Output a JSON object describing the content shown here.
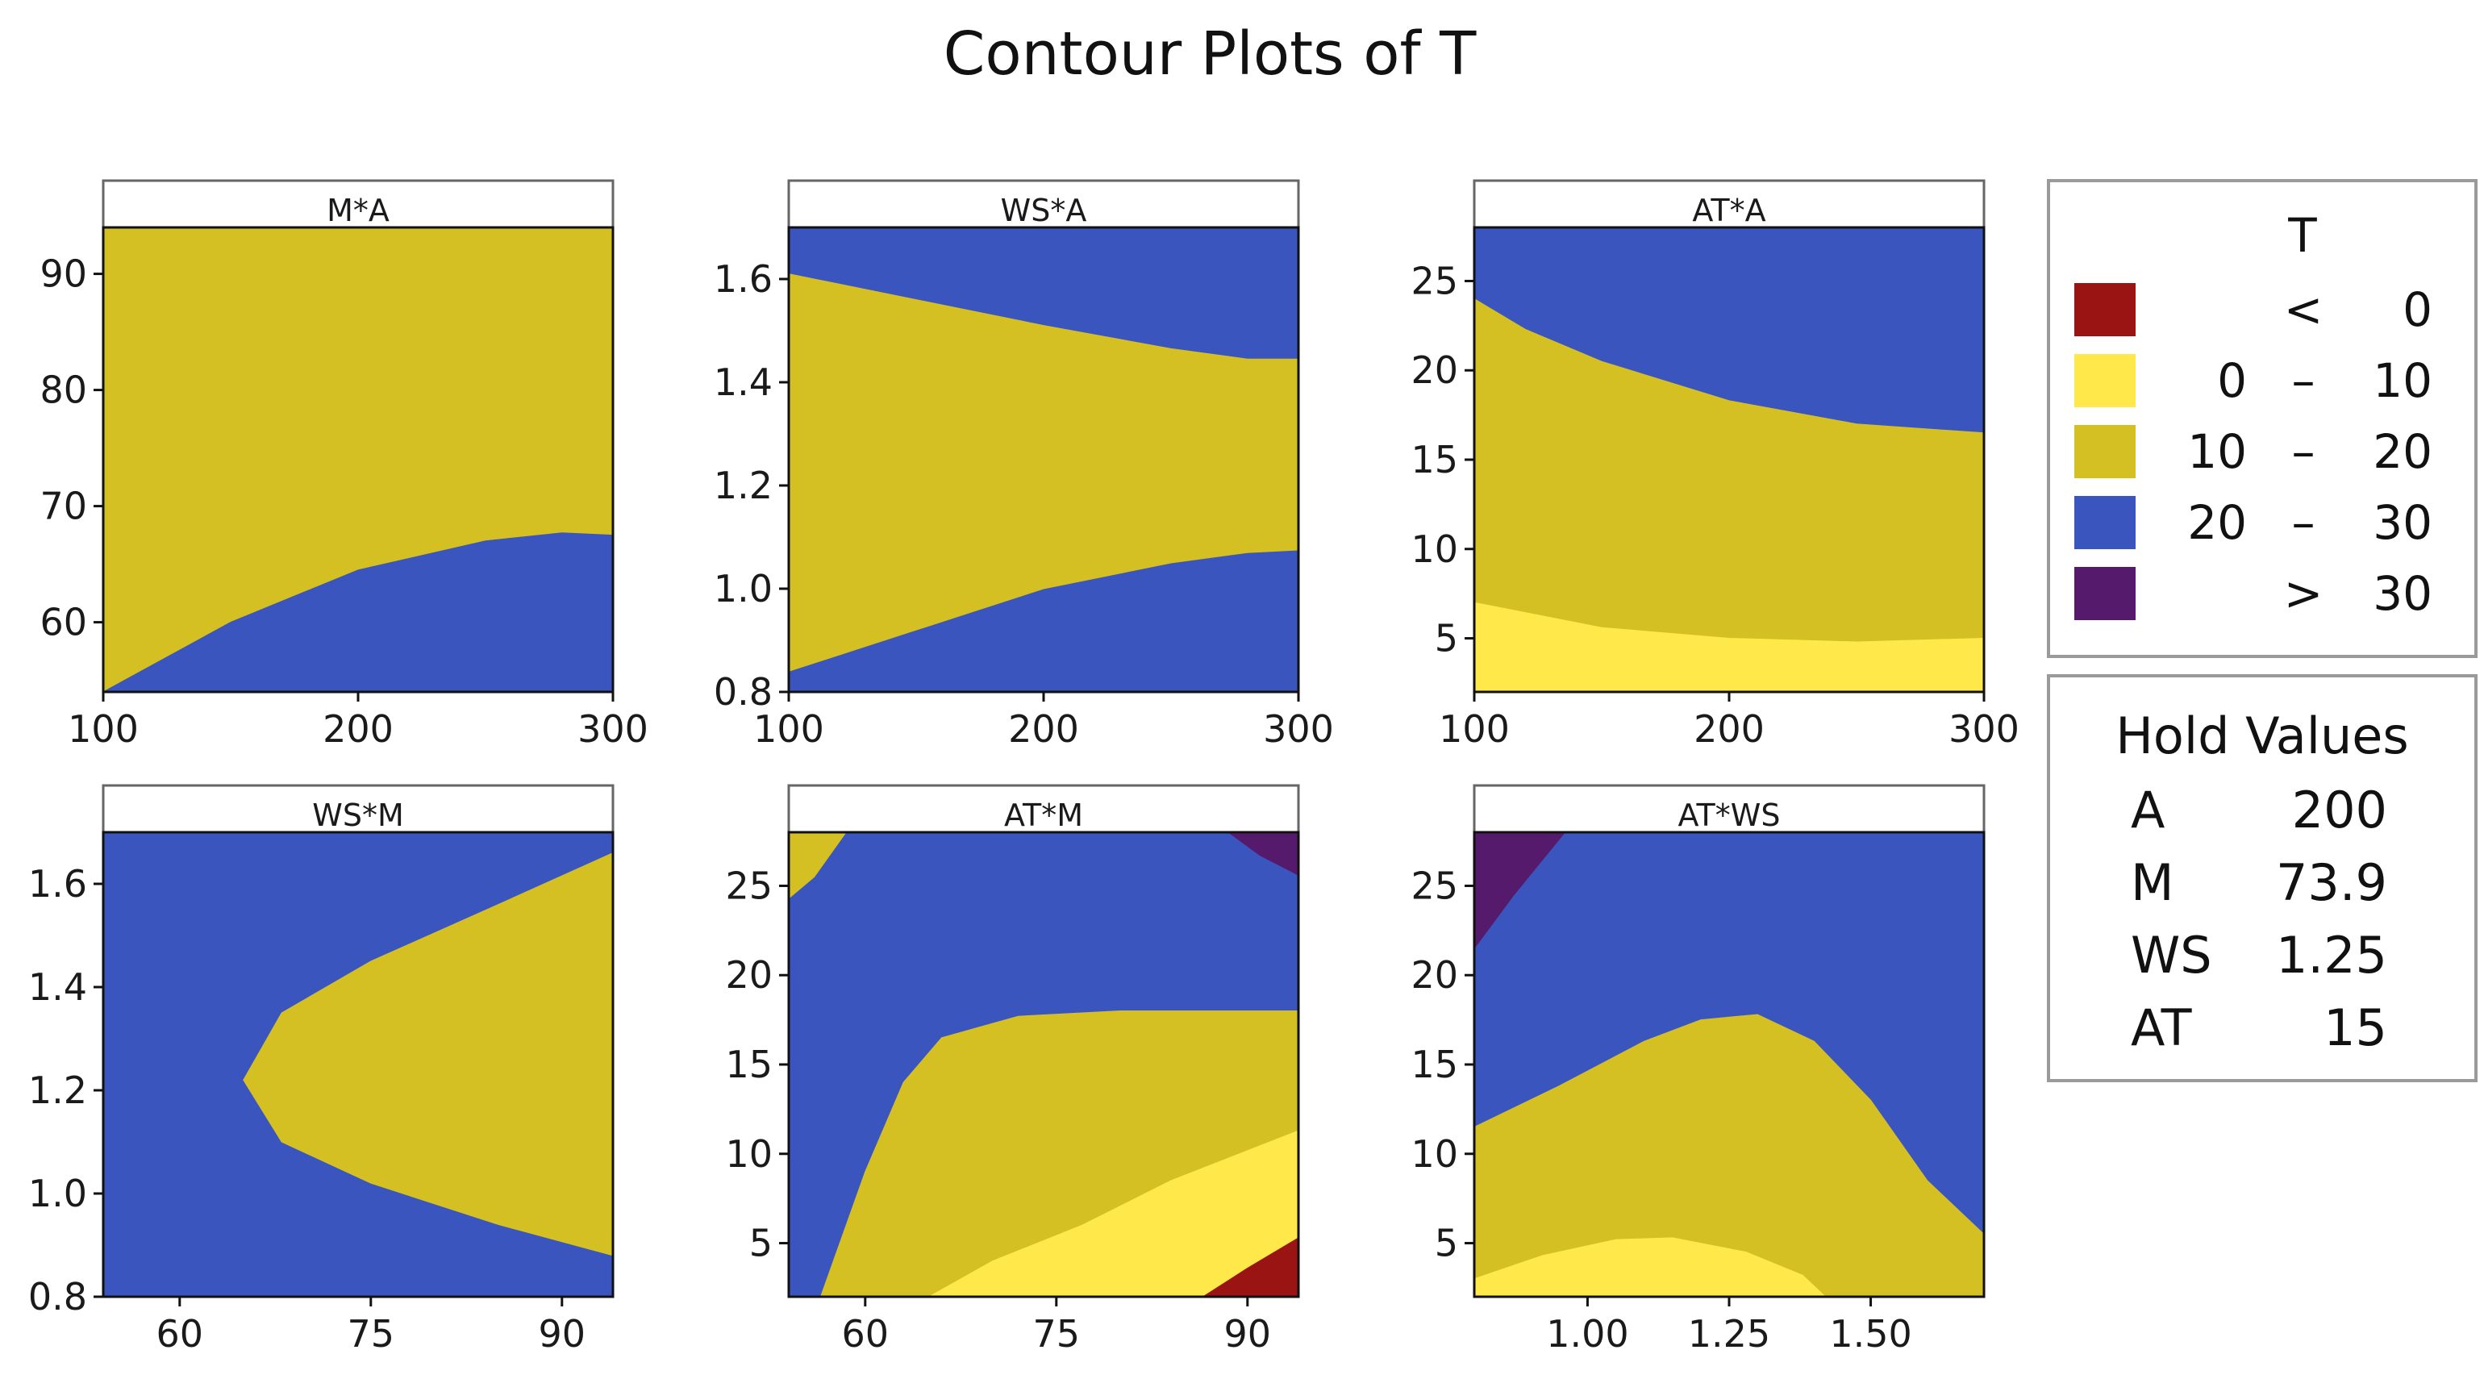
{
  "chart_data": {
    "type": "contour",
    "title": "Contour Plots of T",
    "palette": {
      "lt0": "#9B1414",
      "b0_10": "#FFE84A",
      "b10_20": "#D4C023",
      "b20_30": "#3B55BE",
      "gt30": "#561A6C",
      "frame": "#111111",
      "strip_border": "#666666",
      "legend_border": "#9a9a9a"
    },
    "legend": {
      "title": "T",
      "placement": "right",
      "rows": [
        {
          "key": "lt0",
          "low": "",
          "sep": "<",
          "high": "0"
        },
        {
          "key": "b0_10",
          "low": "0",
          "sep": "–",
          "high": "10"
        },
        {
          "key": "b10_20",
          "low": "10",
          "sep": "–",
          "high": "20"
        },
        {
          "key": "b20_30",
          "low": "20",
          "sep": "–",
          "high": "30"
        },
        {
          "key": "gt30",
          "low": "",
          "sep": ">",
          "high": "30"
        }
      ]
    },
    "hold_values": {
      "title": "Hold Values",
      "rows": [
        {
          "name": "A",
          "value": "200"
        },
        {
          "name": "M",
          "value": "73.9"
        },
        {
          "name": "WS",
          "value": "1.25"
        },
        {
          "name": "AT",
          "value": "15"
        }
      ]
    },
    "panels": [
      {
        "id": "m-a",
        "title": "M*A",
        "xlim": [
          100,
          300
        ],
        "ylim": [
          54,
          94
        ],
        "xticks": [
          100,
          200,
          300
        ],
        "xtick_labels": [
          "100",
          "200",
          "300"
        ],
        "yticks": [
          60,
          70,
          80,
          90
        ],
        "ytick_labels": [
          "60",
          "70",
          "80",
          "90"
        ],
        "regions": [
          {
            "band": "b10_20",
            "points": [
              [
                100,
                94
              ],
              [
                300,
                94
              ],
              [
                300,
                67.5
              ],
              [
                280,
                67.7
              ],
              [
                250,
                67
              ],
              [
                200,
                64.5
              ],
              [
                150,
                60
              ],
              [
                100,
                54
              ]
            ]
          },
          {
            "band": "b20_30",
            "points": [
              [
                100,
                54
              ],
              [
                150,
                60
              ],
              [
                200,
                64.5
              ],
              [
                250,
                67
              ],
              [
                280,
                67.7
              ],
              [
                300,
                67.5
              ],
              [
                300,
                54
              ]
            ]
          }
        ]
      },
      {
        "id": "ws-a",
        "title": "WS*A",
        "xlim": [
          100,
          300
        ],
        "ylim": [
          0.8,
          1.7
        ],
        "xticks": [
          100,
          200,
          300
        ],
        "xtick_labels": [
          "100",
          "200",
          "300"
        ],
        "yticks": [
          0.8,
          1.0,
          1.2,
          1.4,
          1.6
        ],
        "ytick_labels": [
          "0.8",
          "1.0",
          "1.2",
          "1.4",
          "1.6"
        ],
        "regions": [
          {
            "band": "b20_30",
            "points": [
              [
                100,
                0.8
              ],
              [
                300,
                0.8
              ],
              [
                300,
                1.7
              ],
              [
                100,
                1.7
              ]
            ]
          },
          {
            "band": "b10_20",
            "points": [
              [
                100,
                1.61
              ],
              [
                150,
                1.56
              ],
              [
                200,
                1.51
              ],
              [
                250,
                1.465
              ],
              [
                280,
                1.445
              ],
              [
                300,
                1.445
              ],
              [
                300,
                1.075
              ],
              [
                280,
                1.07
              ],
              [
                250,
                1.05
              ],
              [
                200,
                1.0
              ],
              [
                150,
                0.92
              ],
              [
                100,
                0.84
              ]
            ]
          }
        ]
      },
      {
        "id": "at-a",
        "title": "AT*A",
        "xlim": [
          100,
          300
        ],
        "ylim": [
          2,
          28
        ],
        "xticks": [
          100,
          200,
          300
        ],
        "xtick_labels": [
          "100",
          "200",
          "300"
        ],
        "yticks": [
          5,
          10,
          15,
          20,
          25
        ],
        "ytick_labels": [
          "5",
          "10",
          "15",
          "20",
          "25"
        ],
        "regions": [
          {
            "band": "b20_30",
            "points": [
              [
                100,
                2
              ],
              [
                300,
                2
              ],
              [
                300,
                28
              ],
              [
                100,
                28
              ]
            ]
          },
          {
            "band": "b10_20",
            "points": [
              [
                100,
                24
              ],
              [
                120,
                22.3
              ],
              [
                150,
                20.5
              ],
              [
                200,
                18.3
              ],
              [
                250,
                17
              ],
              [
                300,
                16.5
              ],
              [
                300,
                2
              ],
              [
                100,
                2
              ]
            ]
          },
          {
            "band": "b0_10",
            "points": [
              [
                100,
                7
              ],
              [
                150,
                5.6
              ],
              [
                200,
                5
              ],
              [
                250,
                4.8
              ],
              [
                300,
                5
              ],
              [
                300,
                2
              ],
              [
                100,
                2
              ]
            ]
          }
        ]
      },
      {
        "id": "ws-m",
        "title": "WS*M",
        "xlim": [
          54,
          94
        ],
        "ylim": [
          0.8,
          1.7
        ],
        "xticks": [
          60,
          75,
          90
        ],
        "xtick_labels": [
          "60",
          "75",
          "90"
        ],
        "yticks": [
          0.8,
          1.0,
          1.2,
          1.4,
          1.6
        ],
        "ytick_labels": [
          "0.8",
          "1.0",
          "1.2",
          "1.4",
          "1.6"
        ],
        "regions": [
          {
            "band": "b20_30",
            "points": [
              [
                54,
                0.8
              ],
              [
                94,
                0.8
              ],
              [
                94,
                1.7
              ],
              [
                54,
                1.7
              ]
            ]
          },
          {
            "band": "b10_20",
            "points": [
              [
                94,
                1.66
              ],
              [
                85,
                1.56
              ],
              [
                75,
                1.45
              ],
              [
                68,
                1.35
              ],
              [
                65,
                1.22
              ],
              [
                68,
                1.1
              ],
              [
                75,
                1.02
              ],
              [
                85,
                0.94
              ],
              [
                94,
                0.88
              ]
            ]
          }
        ]
      },
      {
        "id": "at-m",
        "title": "AT*M",
        "xlim": [
          54,
          94
        ],
        "ylim": [
          2,
          28
        ],
        "xticks": [
          60,
          75,
          90
        ],
        "xtick_labels": [
          "60",
          "75",
          "90"
        ],
        "yticks": [
          5,
          10,
          15,
          20,
          25
        ],
        "ytick_labels": [
          "5",
          "10",
          "15",
          "20",
          "25"
        ],
        "regions": [
          {
            "band": "b20_30",
            "points": [
              [
                54,
                2
              ],
              [
                94,
                2
              ],
              [
                94,
                28
              ],
              [
                54,
                28
              ]
            ]
          },
          {
            "band": "b10_20",
            "points": [
              [
                54,
                24.3
              ],
              [
                56,
                25.5
              ],
              [
                58.5,
                28
              ],
              [
                54,
                28
              ]
            ]
          },
          {
            "band": "gt30",
            "points": [
              [
                88.5,
                28
              ],
              [
                91,
                26.7
              ],
              [
                94,
                25.6
              ],
              [
                94,
                28
              ]
            ]
          },
          {
            "band": "b10_20",
            "points": [
              [
                56.5,
                2
              ],
              [
                60,
                9
              ],
              [
                63,
                14
              ],
              [
                66,
                16.5
              ],
              [
                72,
                17.7
              ],
              [
                80,
                18
              ],
              [
                94,
                18
              ],
              [
                94,
                2
              ]
            ]
          },
          {
            "band": "b0_10",
            "points": [
              [
                65,
                2
              ],
              [
                70,
                4
              ],
              [
                77,
                6
              ],
              [
                84,
                8.5
              ],
              [
                94,
                11.3
              ],
              [
                94,
                2
              ]
            ]
          },
          {
            "band": "lt0",
            "points": [
              [
                86.5,
                2
              ],
              [
                90,
                3.6
              ],
              [
                94,
                5.3
              ],
              [
                94,
                2
              ]
            ]
          }
        ]
      },
      {
        "id": "at-ws",
        "title": "AT*WS",
        "xlim": [
          0.8,
          1.7
        ],
        "ylim": [
          2,
          28
        ],
        "xticks": [
          1.0,
          1.25,
          1.5
        ],
        "xtick_labels": [
          "1.00",
          "1.25",
          "1.50"
        ],
        "yticks": [
          5,
          10,
          15,
          20,
          25
        ],
        "ytick_labels": [
          "5",
          "10",
          "15",
          "20",
          "25"
        ],
        "regions": [
          {
            "band": "b20_30",
            "points": [
              [
                0.8,
                2
              ],
              [
                1.7,
                2
              ],
              [
                1.7,
                28
              ],
              [
                0.8,
                28
              ]
            ]
          },
          {
            "band": "gt30",
            "points": [
              [
                0.8,
                21.5
              ],
              [
                0.87,
                24.5
              ],
              [
                0.96,
                28
              ],
              [
                0.8,
                28
              ]
            ]
          },
          {
            "band": "b10_20",
            "points": [
              [
                0.8,
                11.5
              ],
              [
                0.95,
                13.8
              ],
              [
                1.1,
                16.3
              ],
              [
                1.2,
                17.5
              ],
              [
                1.3,
                17.8
              ],
              [
                1.4,
                16.3
              ],
              [
                1.5,
                13
              ],
              [
                1.6,
                8.5
              ],
              [
                1.7,
                5.5
              ],
              [
                1.7,
                2
              ],
              [
                0.8,
                2
              ]
            ]
          },
          {
            "band": "b0_10",
            "points": [
              [
                0.8,
                3
              ],
              [
                0.92,
                4.3
              ],
              [
                1.05,
                5.2
              ],
              [
                1.15,
                5.3
              ],
              [
                1.28,
                4.5
              ],
              [
                1.38,
                3.2
              ],
              [
                1.42,
                2
              ],
              [
                0.8,
                2
              ]
            ]
          }
        ]
      }
    ]
  }
}
